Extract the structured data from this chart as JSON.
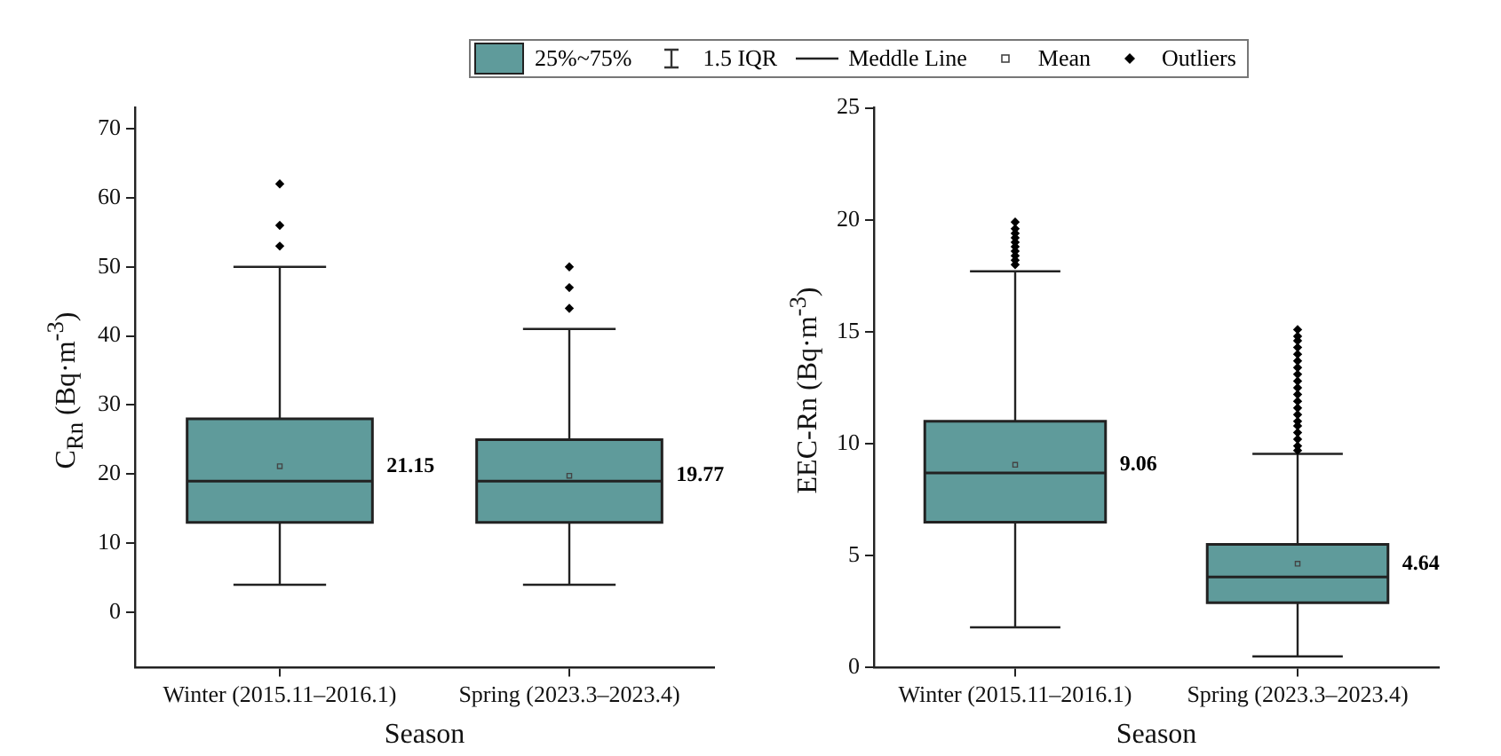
{
  "chart_data": [
    {
      "type": "box",
      "xlabel": "Season",
      "ylabel": "C$_{Rn}$ (Bq·m$^{-3}$)",
      "categories": [
        "Winter (2015.11–2016.1)",
        "Spring (2023.3–2023.4)"
      ],
      "ylim": [
        -8,
        73
      ],
      "yticks": [
        0,
        10,
        20,
        30,
        40,
        50,
        60,
        70
      ],
      "grid": false,
      "legend": "top",
      "marker": "diamond",
      "series": [
        {
          "name": "25%~75%",
          "color": "#5f9b9b",
          "boxes": [
            {
              "low": 4,
              "q1": 13,
              "median": 19,
              "q3": 28,
              "high": 50,
              "mean": 21.15,
              "outliers": [
                53,
                56,
                62
              ]
            },
            {
              "low": 4,
              "q1": 13,
              "median": 19,
              "q3": 25,
              "high": 41,
              "mean": 19.77,
              "outliers": [
                44,
                47,
                50
              ]
            }
          ]
        }
      ],
      "annotations": [
        "1.5 IQR",
        "Meddle Line",
        "Mean",
        "Outliers",
        "21.15",
        "19.77"
      ]
    },
    {
      "type": "box",
      "xlabel": "Season",
      "ylabel": "EEC-Rn (Bq·m$^{-3}$)",
      "categories": [
        "Winter (2015.11–2016.1)",
        "Spring (2023.3–2023.4)"
      ],
      "ylim": [
        0,
        25
      ],
      "yticks": [
        0,
        5,
        10,
        15,
        20,
        25
      ],
      "grid": false,
      "marker": "diamond",
      "series": [
        {
          "color": "#5f9b9b",
          "boxes": [
            {
              "low": 1.8,
              "q1": 6.5,
              "median": 8.7,
              "q3": 11.0,
              "high": 17.7,
              "mean": 9.06,
              "outliers": [
                18.0,
                18.2,
                18.4,
                18.6,
                18.8,
                19.0,
                19.2,
                19.4,
                19.6,
                19.9
              ]
            },
            {
              "low": 0.5,
              "q1": 2.9,
              "median": 4.05,
              "q3": 5.5,
              "high": 9.55,
              "mean": 4.64,
              "outliers": [
                9.7,
                9.9,
                10.2,
                10.5,
                10.8,
                11.0,
                11.3,
                11.6,
                11.9,
                12.2,
                12.5,
                12.8,
                13.1,
                13.4,
                13.7,
                14.0,
                14.3,
                14.6,
                14.8,
                15.1
              ]
            }
          ]
        }
      ],
      "annotations": [
        "9.06",
        "4.64"
      ]
    }
  ]
}
